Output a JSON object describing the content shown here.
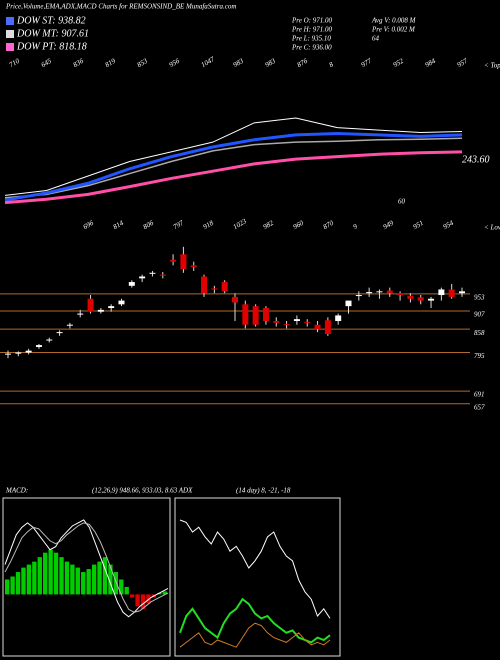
{
  "header": {
    "title": "Price,Volume,EMA,ADX,MACD Charts for REMSONSIND_BE MunafaSutra.com",
    "legend": [
      {
        "name": "DOW ST: 938.82",
        "color": "#4a6cff"
      },
      {
        "name": "DOW MT: 907.61",
        "color": "#dddddd"
      },
      {
        "name": "DOW PT: 818.18",
        "color": "#ff66cc"
      }
    ],
    "info_left": [
      "Pre O: 971.00",
      "Pre H: 971.00",
      "Pre L: 935.10",
      "Pre C: 936.00"
    ],
    "info_right": [
      "Avg V: 0.008 M",
      "Pre V: 0.002 M",
      "64"
    ]
  },
  "chart_data": [
    {
      "type": "line",
      "tops_label": "< Tops",
      "top_labels": [
        "710",
        "645",
        "836",
        "819",
        "853",
        "956",
        "1047",
        "983",
        "983",
        "876",
        "8",
        "977",
        "952",
        "984",
        "957"
      ],
      "side_labels": [
        "243.60",
        "60"
      ],
      "ylim": [
        700,
        1000
      ],
      "series": [
        {
          "name": "EMA white",
          "color": "#ffffff",
          "width": 1,
          "values": [
            720,
            730,
            760,
            790,
            810,
            830,
            870,
            880,
            860,
            855,
            850,
            852
          ]
        },
        {
          "name": "EMA gray",
          "color": "#aaaaaa",
          "width": 1.5,
          "values": [
            715,
            722,
            740,
            765,
            790,
            812,
            825,
            830,
            832,
            835,
            836,
            838
          ]
        },
        {
          "name": "EMA blue",
          "color": "#2255ff",
          "width": 3,
          "values": [
            710,
            725,
            745,
            775,
            800,
            820,
            835,
            845,
            848,
            845,
            842,
            845
          ]
        },
        {
          "name": "EMA pink",
          "color": "#ff4fa8",
          "width": 3,
          "values": [
            705,
            712,
            722,
            738,
            755,
            770,
            785,
            795,
            800,
            805,
            808,
            810
          ]
        }
      ]
    },
    {
      "type": "candlestick",
      "lows_label": "< Lows",
      "top_labels": [
        "696",
        "814",
        "806",
        "797",
        "918",
        "1023",
        "982",
        "960",
        "870",
        "9",
        "949",
        "951",
        "954"
      ],
      "ylim": [
        640,
        1120
      ],
      "levels": [
        953,
        907,
        858,
        795,
        691,
        657
      ],
      "level_color": "#b06a2a",
      "up_color": "#ffffff",
      "down_color": "#e00000",
      "open": [
        790,
        792,
        795,
        810,
        828,
        848,
        868,
        898,
        940,
        905,
        915,
        925,
        975,
        995,
        1008,
        1005,
        1045,
        1060,
        1030,
        1000,
        968,
        985,
        945,
        925,
        920,
        915,
        880,
        872,
        880,
        878,
        870,
        882,
        880,
        920,
        948,
        955,
        958,
        962,
        955,
        948,
        944,
        935,
        950,
        965,
        955
      ],
      "high": [
        800,
        798,
        805,
        818,
        835,
        855,
        875,
        910,
        950,
        915,
        925,
        940,
        990,
        1005,
        1015,
        1012,
        1060,
        1080,
        1040,
        1005,
        975,
        990,
        955,
        935,
        925,
        920,
        890,
        880,
        895,
        885,
        880,
        890,
        900,
        935,
        960,
        970,
        965,
        970,
        960,
        955,
        950,
        945,
        970,
        980,
        970
      ],
      "low": [
        780,
        785,
        790,
        805,
        822,
        840,
        860,
        890,
        900,
        900,
        905,
        920,
        970,
        985,
        1000,
        995,
        1030,
        1010,
        1015,
        945,
        955,
        955,
        880,
        860,
        865,
        870,
        865,
        860,
        870,
        865,
        850,
        840,
        870,
        900,
        935,
        945,
        940,
        945,
        935,
        930,
        925,
        915,
        935,
        940,
        945
      ],
      "close": [
        792,
        795,
        800,
        815,
        830,
        850,
        870,
        900,
        905,
        910,
        920,
        935,
        985,
        1000,
        1010,
        1002,
        1040,
        1020,
        1025,
        955,
        965,
        960,
        930,
        870,
        870,
        880,
        875,
        870,
        885,
        875,
        858,
        845,
        895,
        935,
        950,
        958,
        960,
        955,
        950,
        940,
        935,
        940,
        965,
        945,
        960
      ]
    },
    {
      "type": "macd",
      "title": "MACD:",
      "params": "(12,26,9) 948.66, 933.03, 8.63 ADX",
      "ylim": [
        -40,
        60
      ],
      "up_color": "#00cc00",
      "down_color": "#e00000",
      "histogram": [
        10,
        12,
        15,
        18,
        20,
        22,
        25,
        28,
        30,
        28,
        25,
        22,
        20,
        18,
        15,
        17,
        20,
        22,
        25,
        20,
        15,
        10,
        5,
        -2,
        -8,
        -10,
        -6,
        -2,
        1,
        2
      ],
      "series": [
        {
          "name": "MACD",
          "color": "#ffffff",
          "values": [
            20,
            30,
            40,
            45,
            48,
            45,
            40,
            35,
            30,
            32,
            38,
            42,
            46,
            48,
            50,
            45,
            35,
            25,
            15,
            5,
            -5,
            -12,
            -15,
            -12,
            -8,
            -5,
            -2,
            0,
            2,
            4
          ]
        },
        {
          "name": "Signal",
          "color": "#bbbbbb",
          "values": [
            15,
            22,
            30,
            38,
            42,
            45,
            44,
            40,
            36,
            34,
            36,
            40,
            43,
            46,
            48,
            47,
            42,
            35,
            26,
            16,
            6,
            -3,
            -10,
            -12,
            -11,
            -8,
            -5,
            -3,
            -1,
            1
          ]
        }
      ]
    },
    {
      "type": "adx",
      "title": "(14 day) 8, -21, -18",
      "ylim": [
        0,
        60
      ],
      "series": [
        {
          "name": "ADX",
          "color": "#ffffff",
          "width": 1,
          "values": [
            55,
            54,
            50,
            52,
            48,
            45,
            50,
            47,
            42,
            44,
            40,
            35,
            38,
            42,
            48,
            50,
            44,
            40,
            38,
            30,
            25,
            22,
            15,
            18,
            14
          ]
        },
        {
          "name": "+DI",
          "color": "#22dd22",
          "width": 2,
          "values": [
            8,
            15,
            18,
            14,
            10,
            8,
            6,
            12,
            16,
            18,
            22,
            20,
            16,
            14,
            15,
            12,
            10,
            8,
            9,
            6,
            5,
            4,
            6,
            5,
            7
          ]
        },
        {
          "name": "-DI",
          "color": "#d07a20",
          "width": 1,
          "values": [
            2,
            4,
            6,
            8,
            4,
            3,
            5,
            4,
            3,
            2,
            6,
            10,
            12,
            11,
            8,
            6,
            5,
            4,
            6,
            8,
            5,
            3,
            4,
            3,
            5
          ]
        }
      ]
    }
  ]
}
